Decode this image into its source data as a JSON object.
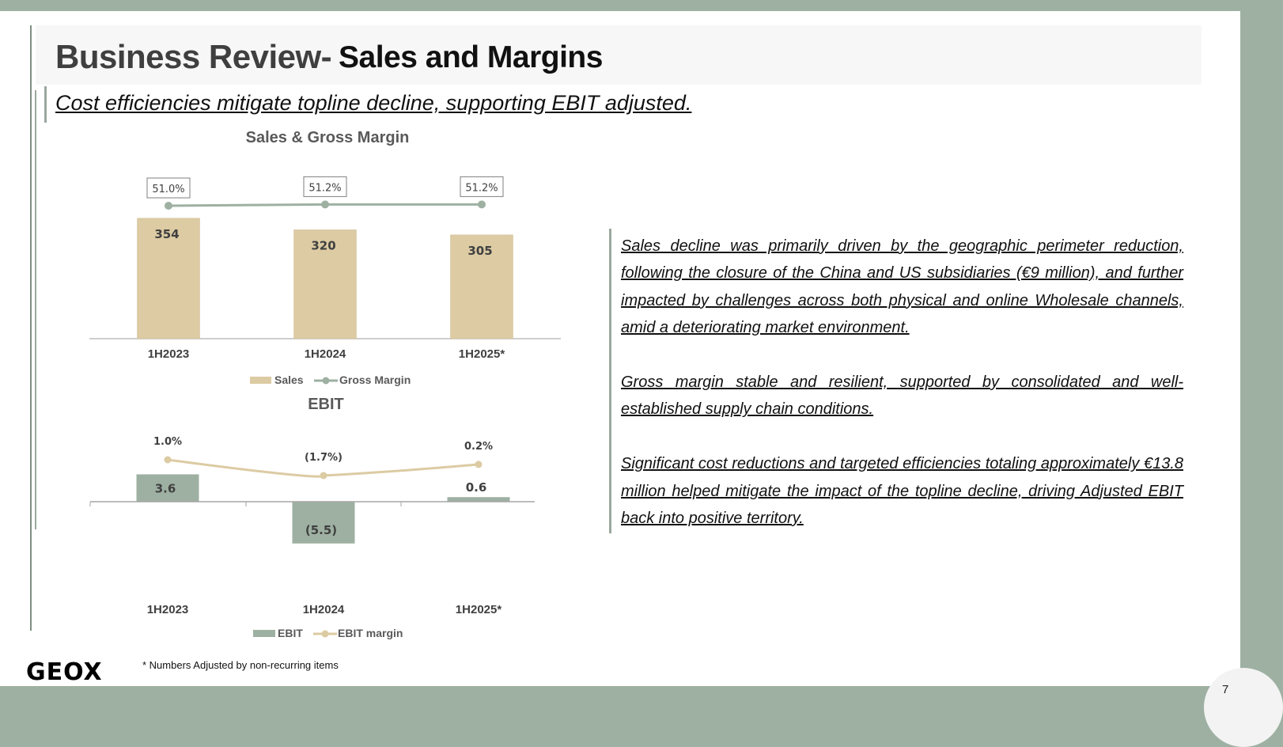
{
  "header": {
    "title_main": "Business Review-",
    "title_sub": "Sales and Margins",
    "subtitle": "Cost efficiencies mitigate topline decline, supporting EBIT adjusted."
  },
  "colors": {
    "sales_bar": "#dccba3",
    "gross_margin_line": "#9eb0a2",
    "ebit_bar": "#9eb0a2",
    "ebit_margin_line": "#dccba3",
    "accent": "#9eb0a2"
  },
  "chart_data": [
    {
      "type": "bar",
      "title": "Sales & Gross Margin",
      "categories": [
        "1H2023",
        "1H2024",
        "1H2025*"
      ],
      "series": [
        {
          "name": "Sales",
          "kind": "bar",
          "values": [
            354,
            320,
            305
          ],
          "labels": [
            "354",
            "320",
            "305"
          ]
        },
        {
          "name": "Gross Margin",
          "kind": "line",
          "values": [
            51.0,
            51.2,
            51.2
          ],
          "labels": [
            "51.0%",
            "51.2%",
            "51.2%"
          ]
        }
      ],
      "legend": "bottom"
    },
    {
      "type": "bar",
      "title": "EBIT",
      "categories": [
        "1H2023",
        "1H2024",
        "1H2025*"
      ],
      "series": [
        {
          "name": "EBIT",
          "kind": "bar",
          "values": [
            3.6,
            -5.5,
            0.6
          ],
          "labels": [
            "3.6",
            "(5.5)",
            "0.6"
          ]
        },
        {
          "name": "EBIT margin",
          "kind": "line",
          "values": [
            1.0,
            -1.7,
            0.2
          ],
          "labels": [
            "1.0%",
            "(1.7%)",
            "0.2%"
          ]
        }
      ],
      "legend": "bottom"
    }
  ],
  "body": {
    "paragraphs": [
      "Sales decline was primarily driven by the geographic perimeter reduction, following the closure of the China and US subsidiaries (€9 million), and further impacted by challenges across both physical and online Wholesale channels, amid a deteriorating market environment.",
      "Gross margin stable and resilient, supported by consolidated and well-established supply chain conditions.",
      "Significant cost reductions and targeted efficiencies totaling approximately €13.8 million helped mitigate the impact of the topline decline, driving Adjusted EBIT back into positive territory."
    ]
  },
  "footer": {
    "logo": "GEOX",
    "footnote": "* Numbers Adjusted by non-recurring items",
    "page_number": "7"
  }
}
